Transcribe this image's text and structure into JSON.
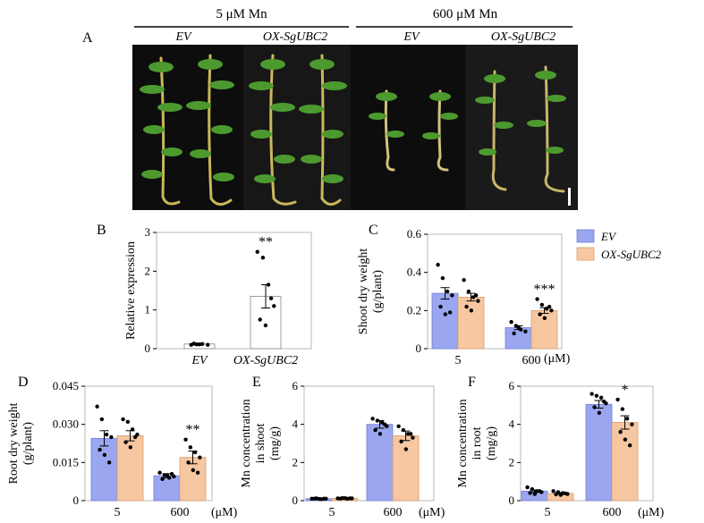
{
  "figure": {
    "panelA": {
      "letter": "A",
      "groups": [
        {
          "label": "5 μM Mn",
          "sub": [
            "EV",
            "OX-SgUBC2"
          ]
        },
        {
          "label": "600 μM Mn",
          "sub": [
            "EV",
            "OX-SgUBC2"
          ]
        }
      ]
    },
    "legend": {
      "items": [
        {
          "name": "EV",
          "color": "#9aa6ef"
        },
        {
          "name": "OX-SgUBC2",
          "color": "#f6c7a0"
        }
      ]
    },
    "unit_label": "(μM)"
  },
  "chart_data": [
    {
      "id": "B",
      "type": "bar",
      "letter": "B",
      "ylabel": "Relative expression",
      "categories": [
        "EV",
        "OX-SgUBC2"
      ],
      "ylim": [
        0,
        3
      ],
      "yticks": [
        "0",
        "1",
        "2",
        "3"
      ],
      "series": [
        {
          "values": [
            0.12,
            1.35
          ],
          "err": [
            0.02,
            0.3
          ],
          "color": "#ffffff",
          "points": [
            [
              0.1,
              0.11,
              0.12,
              0.1,
              0.13,
              0.11
            ],
            [
              2.5,
              2.35,
              1.65,
              1.1,
              0.75,
              0.6,
              1.3
            ]
          ]
        }
      ],
      "annotations": [
        {
          "category": 1,
          "text": "**"
        }
      ]
    },
    {
      "id": "C",
      "type": "bar",
      "letter": "C",
      "ylabel": "Shoot dry weight (g/plant)",
      "categories": [
        "5",
        "600"
      ],
      "ylim": [
        0,
        0.6
      ],
      "yticks": [
        "0",
        "0.2",
        "0.4",
        "0.6"
      ],
      "series": [
        {
          "name": "EV",
          "values": [
            0.29,
            0.11
          ],
          "err": [
            0.03,
            0.01
          ],
          "color": "#9aa6ef",
          "points": [
            [
              0.44,
              0.37,
              0.3,
              0.28,
              0.22,
              0.18,
              0.19
            ],
            [
              0.14,
              0.12,
              0.1,
              0.09,
              0.08,
              0.11
            ]
          ]
        },
        {
          "name": "OX-SgUBC2",
          "values": [
            0.27,
            0.2
          ],
          "err": [
            0.02,
            0.015
          ],
          "color": "#f6c7a0",
          "points": [
            [
              0.36,
              0.3,
              0.27,
              0.25,
              0.22,
              0.2,
              0.28
            ],
            [
              0.26,
              0.23,
              0.21,
              0.2,
              0.18,
              0.16,
              0.22
            ]
          ]
        }
      ],
      "annotations": [
        {
          "category": 1,
          "series": 1,
          "text": "***"
        }
      ]
    },
    {
      "id": "D",
      "type": "bar",
      "letter": "D",
      "ylabel": "Root dry weight (g/plant)",
      "categories": [
        "5",
        "600"
      ],
      "ylim": [
        0,
        0.045
      ],
      "yticks": [
        "0",
        "0.015",
        "0.030",
        "0.045"
      ],
      "series": [
        {
          "name": "EV",
          "values": [
            0.0245,
            0.0098
          ],
          "err": [
            0.003,
            0.0008
          ],
          "color": "#9aa6ef",
          "points": [
            [
              0.037,
              0.032,
              0.026,
              0.025,
              0.02,
              0.018,
              0.015
            ],
            [
              0.011,
              0.01,
              0.009,
              0.0095,
              0.0085,
              0.01,
              0.0105
            ]
          ]
        },
        {
          "name": "OX-SgUBC2",
          "values": [
            0.0255,
            0.017
          ],
          "err": [
            0.002,
            0.0025
          ],
          "color": "#f6c7a0",
          "points": [
            [
              0.032,
              0.031,
              0.028,
              0.026,
              0.023,
              0.021,
              0.025
            ],
            [
              0.024,
              0.021,
              0.019,
              0.017,
              0.015,
              0.012,
              0.011
            ]
          ]
        }
      ],
      "annotations": [
        {
          "category": 1,
          "series": 1,
          "text": "**"
        }
      ]
    },
    {
      "id": "E",
      "type": "bar",
      "letter": "E",
      "ylabel": "Mn concentration in shoot (mg/g)",
      "categories": [
        "5",
        "600"
      ],
      "ylim": [
        0,
        6
      ],
      "yticks": [
        "0",
        "2",
        "4",
        "6"
      ],
      "series": [
        {
          "name": "EV",
          "values": [
            0.1,
            4.0
          ],
          "err": [
            0.02,
            0.2
          ],
          "color": "#9aa6ef",
          "points": [
            [
              0.1,
              0.12,
              0.08,
              0.1,
              0.11,
              0.09,
              0.1
            ],
            [
              4.3,
              4.2,
              4.1,
              3.9,
              3.7,
              3.5,
              4.0
            ]
          ]
        },
        {
          "name": "OX-SgUBC2",
          "values": [
            0.12,
            3.4
          ],
          "err": [
            0.02,
            0.25
          ],
          "color": "#f6c7a0",
          "points": [
            [
              0.12,
              0.14,
              0.1,
              0.12,
              0.11,
              0.13,
              0.12
            ],
            [
              3.9,
              3.7,
              3.5,
              3.3,
              3.1,
              2.7,
              3.5
            ]
          ]
        }
      ],
      "annotations": []
    },
    {
      "id": "F",
      "type": "bar",
      "letter": "F",
      "ylabel": "Mn concentration in root (mg/g)",
      "categories": [
        "5",
        "600"
      ],
      "ylim": [
        0,
        6
      ],
      "yticks": [
        "0",
        "2",
        "4",
        "6"
      ],
      "series": [
        {
          "name": "EV",
          "values": [
            0.5,
            5.05
          ],
          "err": [
            0.06,
            0.2
          ],
          "color": "#9aa6ef",
          "points": [
            [
              0.7,
              0.6,
              0.5,
              0.45,
              0.4,
              0.35,
              0.5
            ],
            [
              5.6,
              5.5,
              5.4,
              5.1,
              4.9,
              4.6,
              5.2
            ]
          ]
        },
        {
          "name": "OX-SgUBC2",
          "values": [
            0.38,
            4.1
          ],
          "err": [
            0.04,
            0.35
          ],
          "color": "#f6c7a0",
          "points": [
            [
              0.5,
              0.45,
              0.4,
              0.35,
              0.33,
              0.3,
              0.38
            ],
            [
              5.3,
              4.8,
              4.3,
              4.0,
              3.6,
              3.2,
              2.9
            ]
          ]
        }
      ],
      "annotations": [
        {
          "category": 1,
          "series": 1,
          "text": "*"
        }
      ]
    }
  ]
}
